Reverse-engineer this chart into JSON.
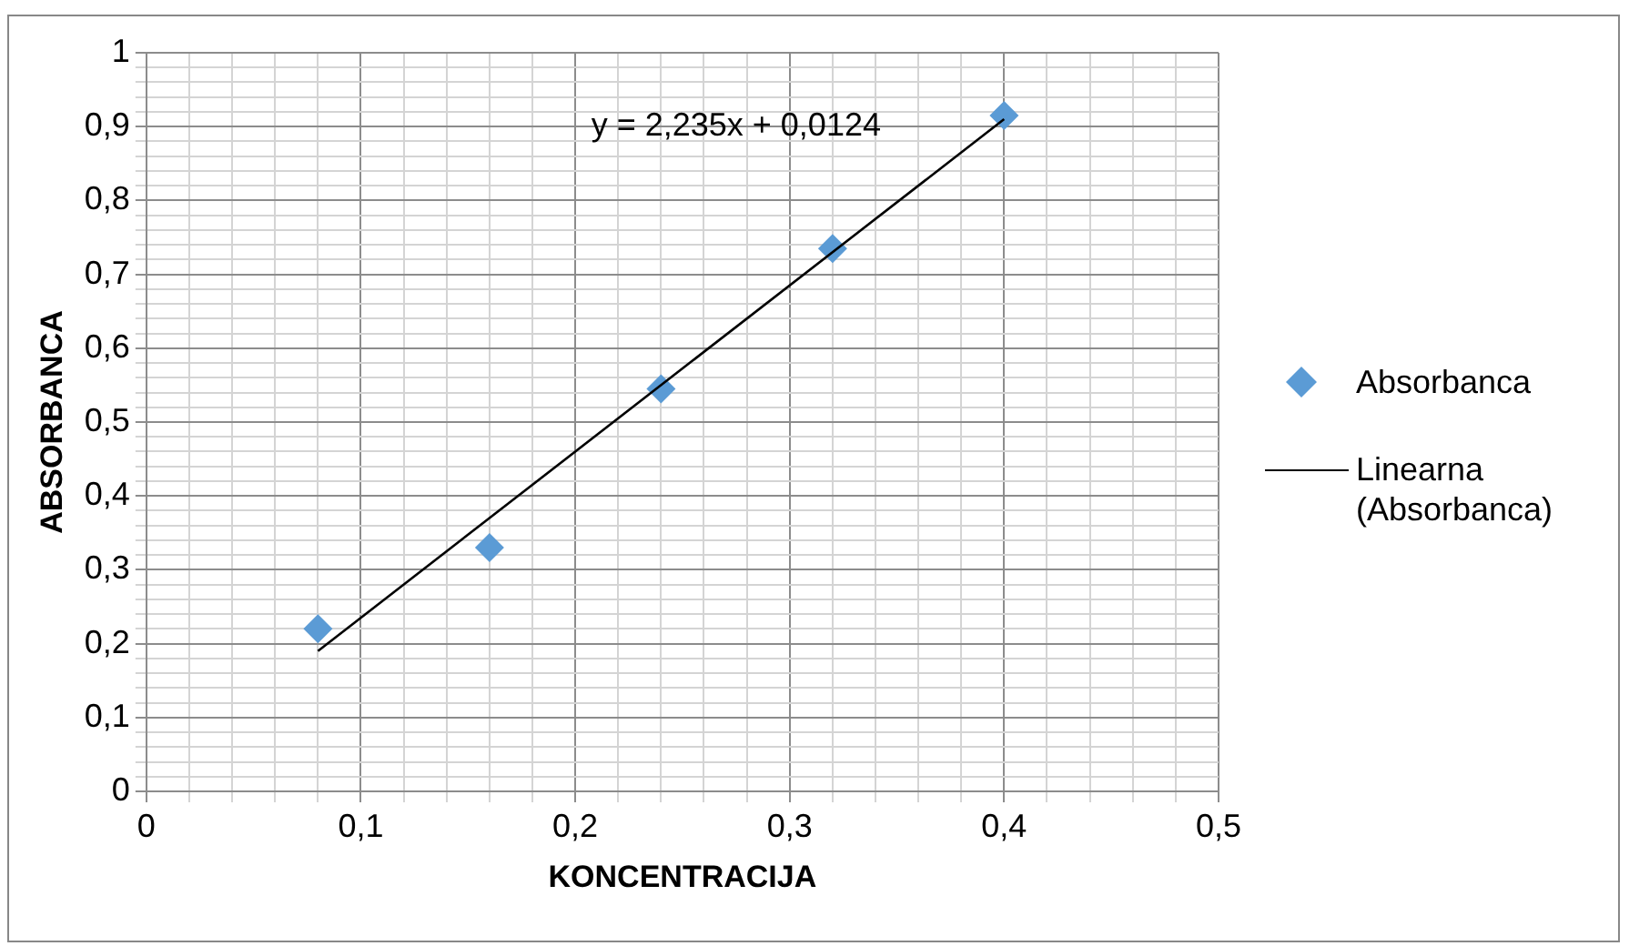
{
  "chart_data": {
    "type": "scatter",
    "xlabel": "KONCENTRACIJA",
    "ylabel": "ABSORBANCA",
    "x": [
      0.08,
      0.16,
      0.24,
      0.32,
      0.4
    ],
    "series": [
      {
        "name": "Absorbanca",
        "color": "#5b9bd5",
        "values": [
          0.22,
          0.33,
          0.545,
          0.735,
          0.915
        ],
        "marker": "diamond"
      },
      {
        "name": "Linearna (Absorbanca)",
        "type": "line",
        "color": "#000000",
        "x": [
          0.08,
          0.4
        ],
        "values": [
          0.19,
          0.91
        ],
        "marker": "none",
        "line_style": "solid"
      }
    ],
    "annotations": [
      "y = 2,235x + 0,0124"
    ],
    "xlim": [
      0,
      0.5
    ],
    "xticks": [
      0,
      {
        "value": 0.02,
        "label": null
      },
      {
        "value": 0.04,
        "label": null
      },
      {
        "value": 0.06,
        "label": null
      },
      {
        "value": 0.08,
        "label": null
      },
      {
        "value": 0.1,
        "label": "0,1"
      },
      {
        "value": 0.12,
        "label": null
      },
      {
        "value": 0.14,
        "label": null
      },
      {
        "value": 0.16,
        "label": null
      },
      {
        "value": 0.18,
        "label": null
      },
      {
        "value": 0.2,
        "label": "0,2"
      },
      {
        "value": 0.22,
        "label": null
      },
      {
        "value": 0.24,
        "label": null
      },
      {
        "value": 0.26,
        "label": null
      },
      {
        "value": 0.28,
        "label": null
      },
      {
        "value": 0.3,
        "label": "0,3"
      },
      {
        "value": 0.32,
        "label": null
      },
      {
        "value": 0.34,
        "label": null
      },
      {
        "value": 0.36,
        "label": null
      },
      {
        "value": 0.38,
        "label": null
      },
      {
        "value": 0.4,
        "label": "0,4"
      },
      {
        "value": 0.42,
        "label": null
      },
      {
        "value": 0.44,
        "label": null
      },
      {
        "value": 0.46,
        "label": null
      },
      {
        "value": 0.48,
        "label": null
      },
      {
        "value": 0.5,
        "label": "0,5"
      }
    ],
    "ylim": [
      0,
      1
    ],
    "yticks": [
      0,
      {
        "value": 0.02,
        "label": null
      },
      {
        "value": 0.04,
        "label": null
      },
      {
        "value": 0.06,
        "label": null
      },
      {
        "value": 0.08,
        "label": null
      },
      {
        "value": 0.1,
        "label": "0,1"
      },
      {
        "value": 0.12,
        "label": null
      },
      {
        "value": 0.14,
        "label": null
      },
      {
        "value": 0.16,
        "label": null
      },
      {
        "value": 0.18,
        "label": null
      },
      {
        "value": 0.2,
        "label": "0,2"
      },
      {
        "value": 0.22,
        "label": null
      },
      {
        "value": 0.24,
        "label": null
      },
      {
        "value": 0.26,
        "label": null
      },
      {
        "value": 0.28,
        "label": null
      },
      {
        "value": 0.3,
        "label": "0,3"
      },
      {
        "value": 0.32,
        "label": null
      },
      {
        "value": 0.34,
        "label": null
      },
      {
        "value": 0.36,
        "label": null
      },
      {
        "value": 0.38,
        "label": null
      },
      {
        "value": 0.4,
        "label": "0,4"
      },
      {
        "value": 0.42,
        "label": null
      },
      {
        "value": 0.44,
        "label": null
      },
      {
        "value": 0.46,
        "label": null
      },
      {
        "value": 0.48,
        "label": null
      },
      {
        "value": 0.5,
        "label": "0,5"
      },
      {
        "value": 0.52,
        "label": null
      },
      {
        "value": 0.54,
        "label": null
      },
      {
        "value": 0.56,
        "label": null
      },
      {
        "value": 0.58,
        "label": null
      },
      {
        "value": 0.6,
        "label": "0,6"
      },
      {
        "value": 0.62,
        "label": null
      },
      {
        "value": 0.64,
        "label": null
      },
      {
        "value": 0.66,
        "label": null
      },
      {
        "value": 0.68,
        "label": null
      },
      {
        "value": 0.7,
        "label": "0,7"
      },
      {
        "value": 0.72,
        "label": null
      },
      {
        "value": 0.74,
        "label": null
      },
      {
        "value": 0.76,
        "label": null
      },
      {
        "value": 0.78,
        "label": null
      },
      {
        "value": 0.8,
        "label": "0,8"
      },
      {
        "value": 0.82,
        "label": null
      },
      {
        "value": 0.84,
        "label": null
      },
      {
        "value": 0.86,
        "label": null
      },
      {
        "value": 0.88,
        "label": null
      },
      {
        "value": 0.9,
        "label": "0,9"
      },
      {
        "value": 0.92,
        "label": null
      },
      {
        "value": 0.94,
        "label": null
      },
      {
        "value": 0.96,
        "label": null
      },
      {
        "value": 0.98,
        "label": null
      },
      {
        "value": 1,
        "label": "1"
      }
    ],
    "grid": true,
    "legend": "right"
  }
}
